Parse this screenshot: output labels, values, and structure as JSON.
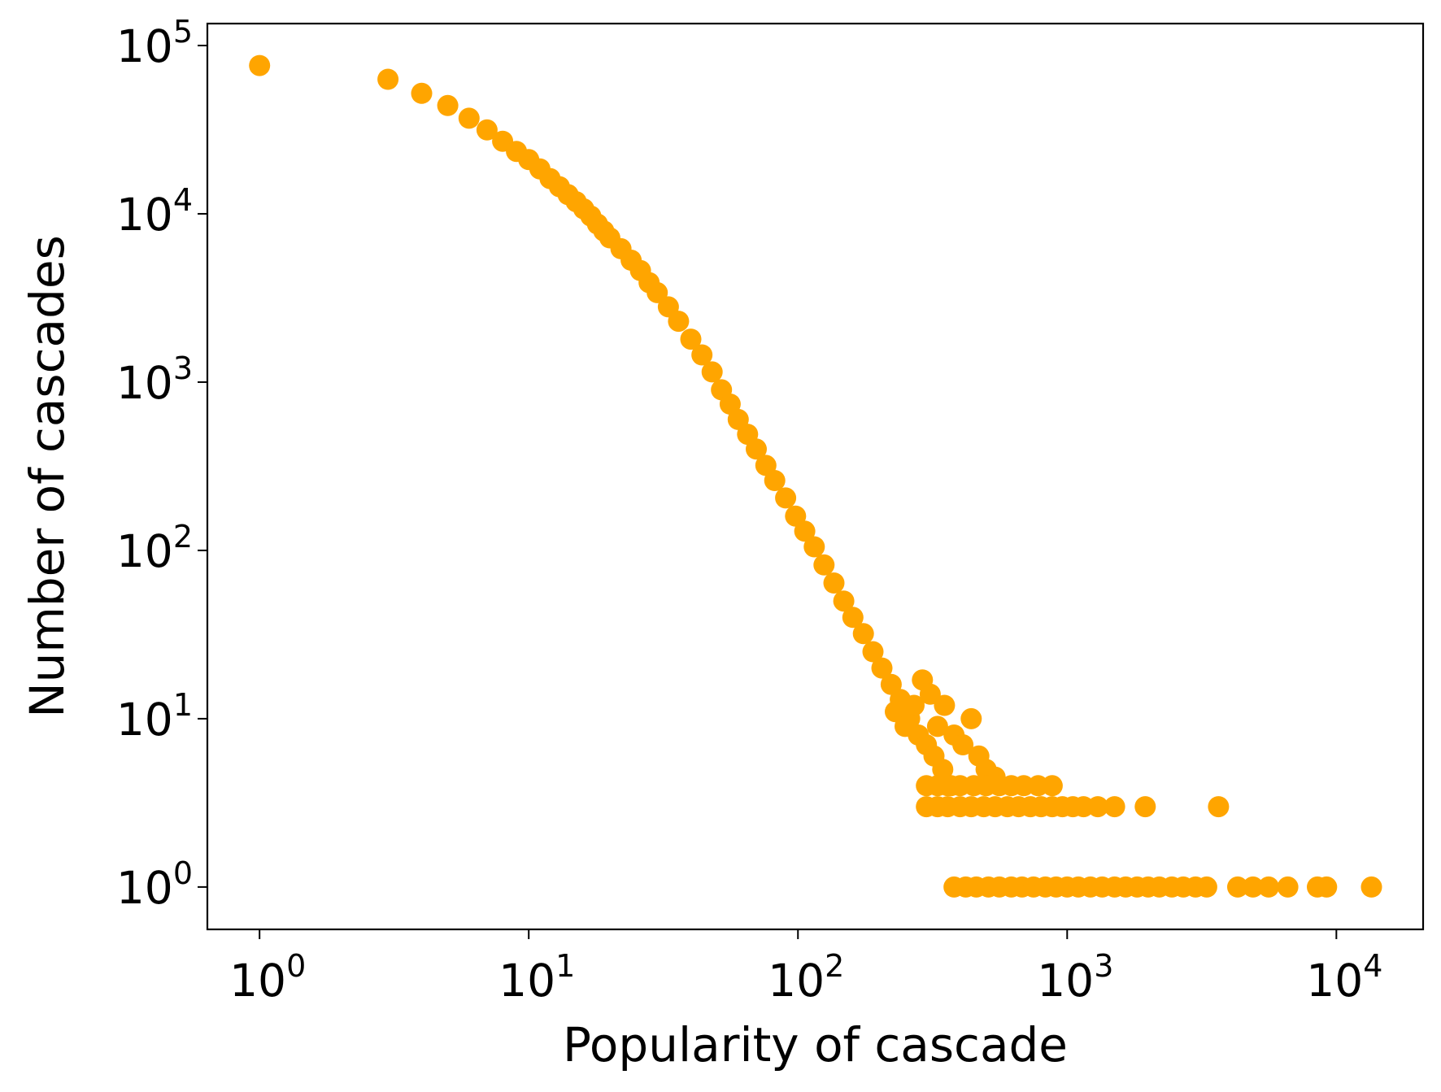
{
  "chart_data": {
    "type": "scatter",
    "title": "",
    "xlabel": "Popularity of cascade",
    "ylabel": "Number of cascades",
    "xscale": "log",
    "yscale": "log",
    "xlim": [
      0.64,
      21000
    ],
    "ylim": [
      0.56,
      135000
    ],
    "marker_color": "#FFA500",
    "x_ticks": [
      {
        "value": 1,
        "base": "10",
        "exp": "0"
      },
      {
        "value": 10,
        "base": "10",
        "exp": "1"
      },
      {
        "value": 100,
        "base": "10",
        "exp": "2"
      },
      {
        "value": 1000,
        "base": "10",
        "exp": "3"
      },
      {
        "value": 10000,
        "base": "10",
        "exp": "4"
      }
    ],
    "y_ticks": [
      {
        "value": 1,
        "base": "10",
        "exp": "0"
      },
      {
        "value": 10,
        "base": "10",
        "exp": "1"
      },
      {
        "value": 100,
        "base": "10",
        "exp": "2"
      },
      {
        "value": 1000,
        "base": "10",
        "exp": "3"
      },
      {
        "value": 10000,
        "base": "10",
        "exp": "4"
      },
      {
        "value": 100000,
        "base": "10",
        "exp": "5"
      }
    ],
    "series": [
      {
        "name": "cascades",
        "points": [
          [
            1,
            76000
          ],
          [
            3,
            63000
          ],
          [
            4,
            52000
          ],
          [
            5,
            44000
          ],
          [
            6,
            37000
          ],
          [
            7,
            31500
          ],
          [
            8,
            27000
          ],
          [
            9,
            23500
          ],
          [
            10,
            21000
          ],
          [
            11,
            18500
          ],
          [
            12,
            16200
          ],
          [
            13,
            14500
          ],
          [
            14,
            13000
          ],
          [
            15,
            11800
          ],
          [
            16,
            10700
          ],
          [
            17,
            9700
          ],
          [
            18,
            8700
          ],
          [
            19,
            7900
          ],
          [
            20,
            7200
          ],
          [
            22,
            6200
          ],
          [
            24,
            5300
          ],
          [
            26,
            4600
          ],
          [
            28,
            3900
          ],
          [
            30,
            3400
          ],
          [
            33,
            2800
          ],
          [
            36,
            2300
          ],
          [
            40,
            1800
          ],
          [
            44,
            1450
          ],
          [
            48,
            1150
          ],
          [
            52,
            900
          ],
          [
            56,
            740
          ],
          [
            60,
            600
          ],
          [
            65,
            490
          ],
          [
            70,
            400
          ],
          [
            76,
            320
          ],
          [
            82,
            260
          ],
          [
            90,
            205
          ],
          [
            98,
            160
          ],
          [
            106,
            130
          ],
          [
            115,
            105
          ],
          [
            125,
            82
          ],
          [
            136,
            64
          ],
          [
            148,
            50
          ],
          [
            160,
            40
          ],
          [
            175,
            32
          ],
          [
            190,
            25
          ],
          [
            205,
            20
          ],
          [
            222,
            16
          ],
          [
            240,
            13
          ],
          [
            260,
            10
          ],
          [
            280,
            8
          ],
          [
            300,
            7
          ],
          [
            320,
            6
          ],
          [
            345,
            5
          ],
          [
            370,
            4
          ],
          [
            230,
            11
          ],
          [
            250,
            9
          ],
          [
            270,
            12
          ],
          [
            290,
            17
          ],
          [
            310,
            14
          ],
          [
            330,
            9
          ],
          [
            350,
            12
          ],
          [
            380,
            8
          ],
          [
            410,
            7
          ],
          [
            440,
            10
          ],
          [
            470,
            6
          ],
          [
            500,
            5
          ],
          [
            540,
            4.5
          ],
          [
            300,
            4
          ],
          [
            330,
            4
          ],
          [
            360,
            4
          ],
          [
            400,
            4
          ],
          [
            450,
            4
          ],
          [
            500,
            4
          ],
          [
            560,
            4
          ],
          [
            620,
            4
          ],
          [
            690,
            4
          ],
          [
            780,
            4
          ],
          [
            880,
            4
          ],
          [
            300,
            3
          ],
          [
            330,
            3
          ],
          [
            360,
            3
          ],
          [
            400,
            3
          ],
          [
            440,
            3
          ],
          [
            490,
            3
          ],
          [
            540,
            3
          ],
          [
            600,
            3
          ],
          [
            660,
            3
          ],
          [
            730,
            3
          ],
          [
            800,
            3
          ],
          [
            880,
            3
          ],
          [
            960,
            3
          ],
          [
            1050,
            3
          ],
          [
            1150,
            3
          ],
          [
            1300,
            3
          ],
          [
            1500,
            3
          ],
          [
            1950,
            3
          ],
          [
            3650,
            3
          ],
          [
            380,
            1
          ],
          [
            420,
            1
          ],
          [
            460,
            1
          ],
          [
            510,
            1
          ],
          [
            560,
            1
          ],
          [
            620,
            1
          ],
          [
            680,
            1
          ],
          [
            750,
            1
          ],
          [
            830,
            1
          ],
          [
            910,
            1
          ],
          [
            1000,
            1
          ],
          [
            1100,
            1
          ],
          [
            1220,
            1
          ],
          [
            1350,
            1
          ],
          [
            1500,
            1
          ],
          [
            1650,
            1
          ],
          [
            1820,
            1
          ],
          [
            2000,
            1
          ],
          [
            2200,
            1
          ],
          [
            2450,
            1
          ],
          [
            2700,
            1
          ],
          [
            3000,
            1
          ],
          [
            3300,
            1
          ],
          [
            4300,
            1
          ],
          [
            4900,
            1
          ],
          [
            5600,
            1
          ],
          [
            6600,
            1
          ],
          [
            8500,
            1
          ],
          [
            9200,
            1
          ],
          [
            13500,
            1
          ]
        ]
      }
    ]
  }
}
